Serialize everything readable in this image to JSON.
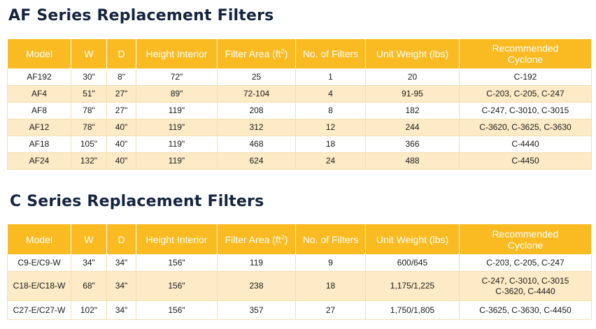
{
  "af_section": {
    "title": "AF Series Replacement Filters",
    "headers": {
      "model": "Model",
      "w": "W",
      "d": "D",
      "height": "Height Interior",
      "area_prefix": "Filter Area (ft",
      "area_sup": "2",
      "area_suffix": ")",
      "filters": "No. of Filters",
      "weight": "Unit Weight (lbs)",
      "cyclone_line1": "Recommended",
      "cyclone_line2": "Cyclone"
    },
    "rows": [
      {
        "model": "AF192",
        "w": "30\"",
        "d": "8\"",
        "height": "72\"",
        "area": "25",
        "filters": "1",
        "weight": "20",
        "cyclone": "C-192"
      },
      {
        "model": "AF4",
        "w": "51\"",
        "d": "27\"",
        "height": "89\"",
        "area": "72-104",
        "filters": "4",
        "weight": "91-95",
        "cyclone": "C-203, C-205, C-247"
      },
      {
        "model": "AF8",
        "w": "78\"",
        "d": "27\"",
        "height": "119\"",
        "area": "208",
        "filters": "8",
        "weight": "182",
        "cyclone": "C-247, C-3010, C-3015"
      },
      {
        "model": "AF12",
        "w": "78\"",
        "d": "40\"",
        "height": "119\"",
        "area": "312",
        "filters": "12",
        "weight": "244",
        "cyclone": "C-3620, C-3625, C-3630"
      },
      {
        "model": "AF18",
        "w": "105\"",
        "d": "40\"",
        "height": "119\"",
        "area": "468",
        "filters": "18",
        "weight": "366",
        "cyclone": "C-4440"
      },
      {
        "model": "AF24",
        "w": "132\"",
        "d": "40\"",
        "height": "119\"",
        "area": "624",
        "filters": "24",
        "weight": "488",
        "cyclone": "C-4450"
      }
    ]
  },
  "c_section": {
    "title": "C Series Replacement Filters",
    "headers": {
      "model": "Model",
      "w": "W",
      "d": "D",
      "height": "Height Interior",
      "area_prefix": "Filter Area (ft",
      "area_sup": "2",
      "area_suffix": ")",
      "filters": "No. of Filters",
      "weight": "Unit Weight (lbs)",
      "cyclone_line1": "Recommended",
      "cyclone_line2": "Cyclone"
    },
    "rows": [
      {
        "model": "C9-E/C9-W",
        "w": "34\"",
        "d": "34\"",
        "height": "156\"",
        "area": "119",
        "filters": "9",
        "weight": "600/645",
        "cyclone_line1": "C-203, C-205, C-247",
        "cyclone_line2": ""
      },
      {
        "model": "C18-E/C18-W",
        "w": "68\"",
        "d": "34\"",
        "height": "156\"",
        "area": "238",
        "filters": "18",
        "weight": "1,175/1,225",
        "cyclone_line1": "C-247, C-3010, C-3015",
        "cyclone_line2": "C-3620, C-4440"
      },
      {
        "model": "C27-E/C27-W",
        "w": "102\"",
        "d": "34\"",
        "height": "156\"",
        "area": "357",
        "filters": "27",
        "weight": "1,750/1,805",
        "cyclone_line1": "C-3625, C-3630, C-4450",
        "cyclone_line2": ""
      }
    ]
  }
}
